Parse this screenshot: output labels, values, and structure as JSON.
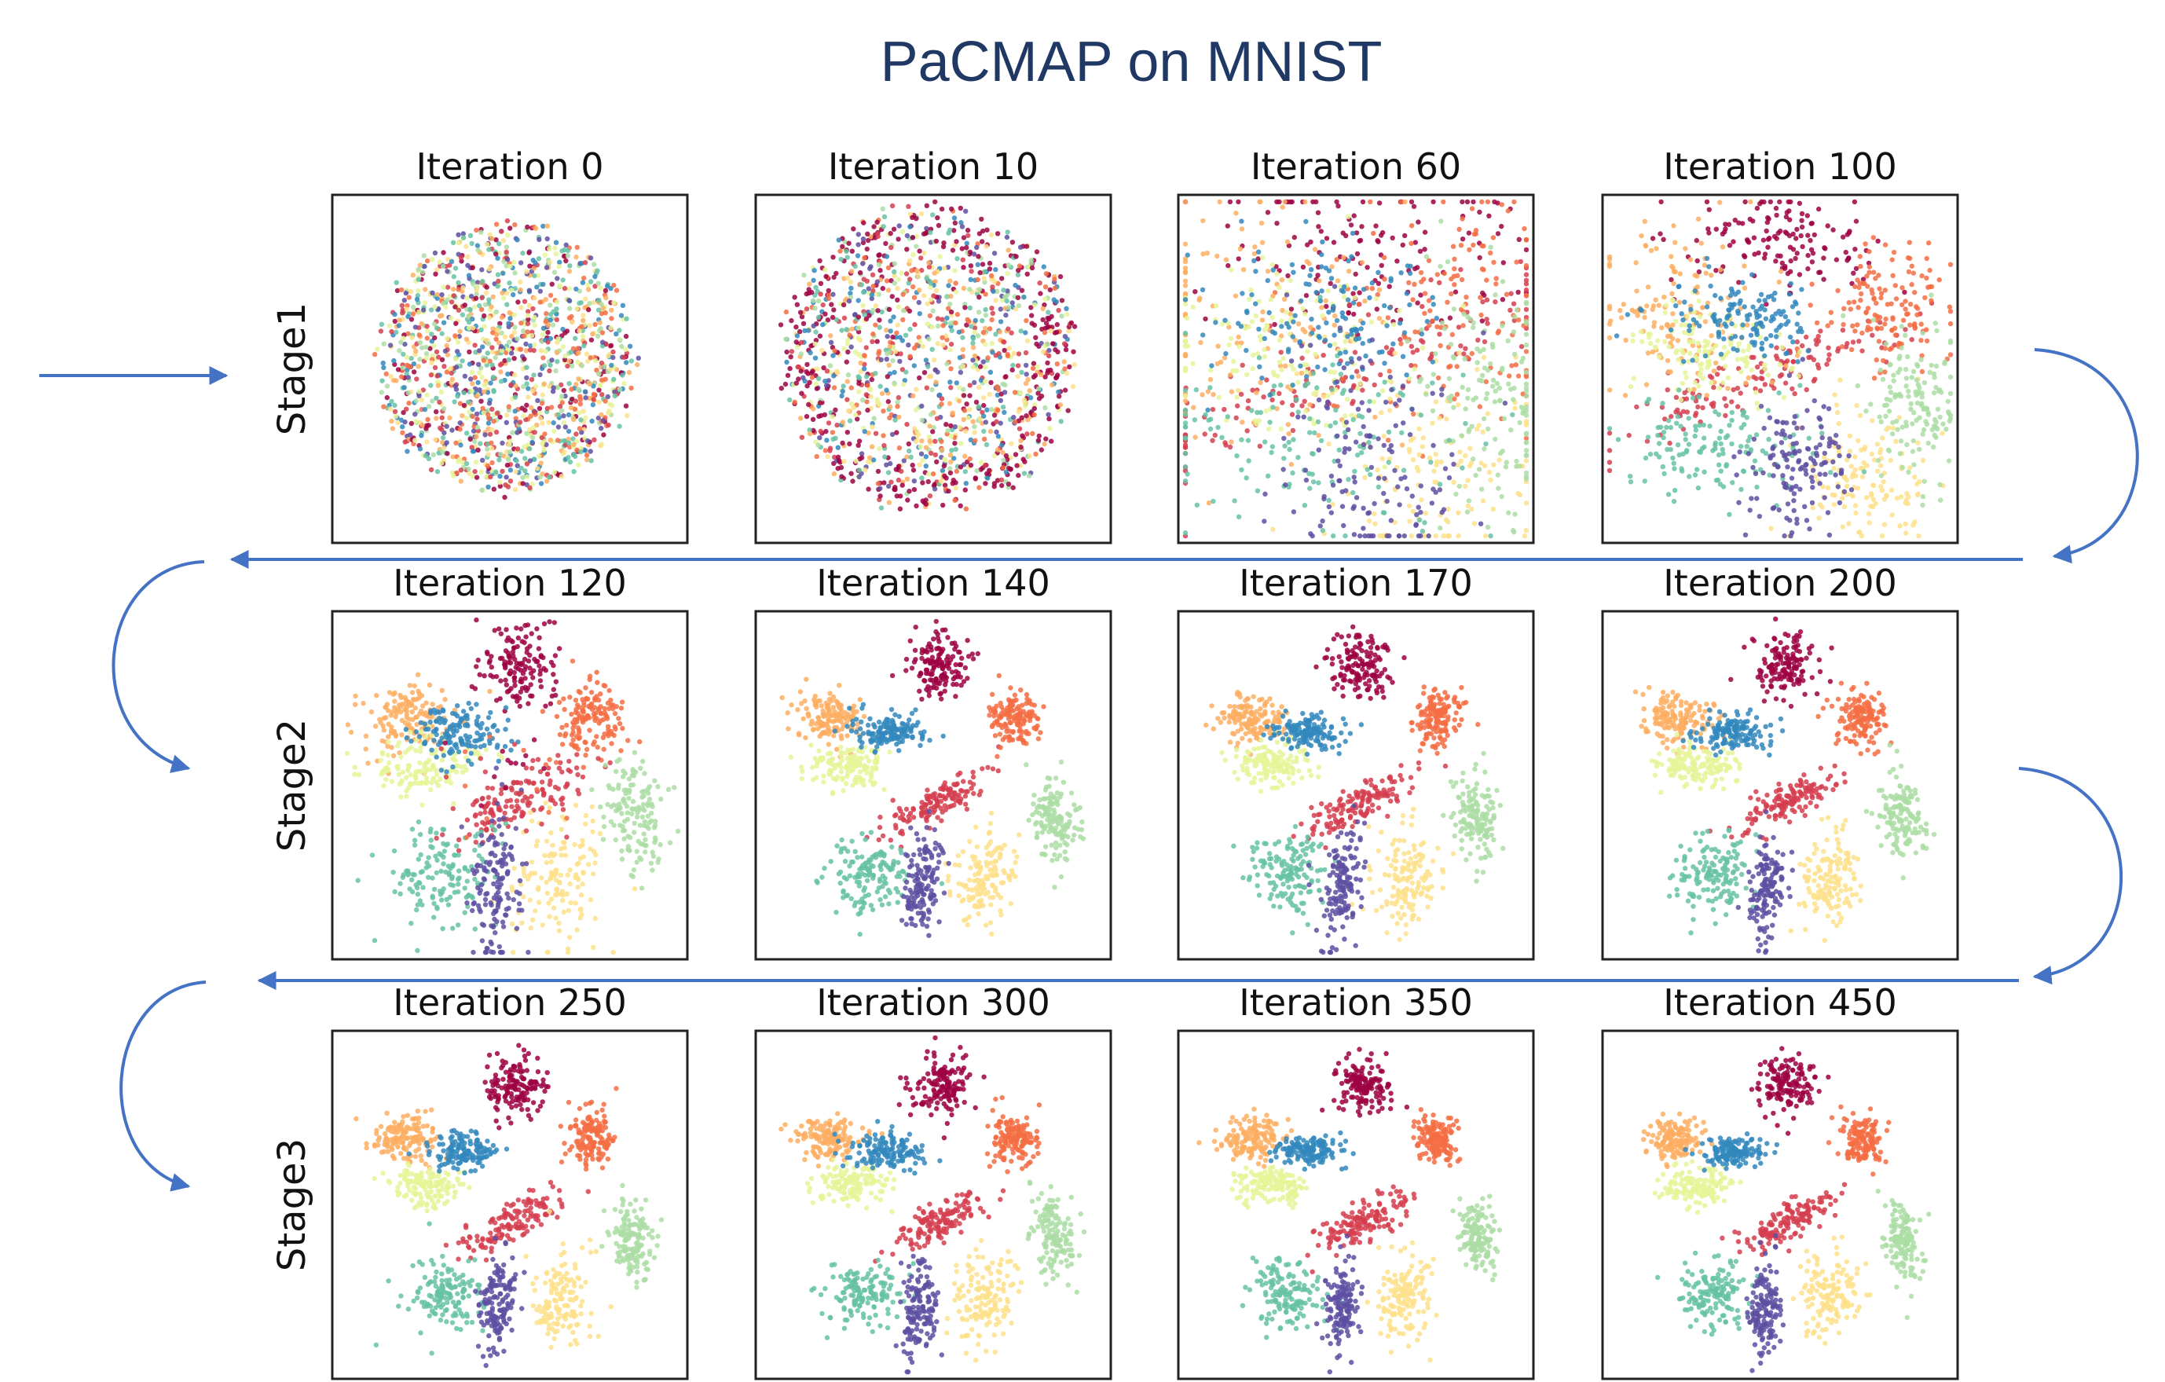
{
  "title": "PaCMAP on MNIST",
  "colors": [
    "#9e0142",
    "#d53e4f",
    "#f46d43",
    "#fdae61",
    "#fee08b",
    "#e6f598",
    "#abdda4",
    "#66c2a5",
    "#3288bd",
    "#5e4fa2"
  ],
  "arrow_color": "#4472c4",
  "chart_data": {
    "type": "scatter",
    "rows": [
      {
        "label": "Stage1",
        "panels": [
          {
            "title": "Iteration 0",
            "iteration": 0
          },
          {
            "title": "Iteration 10",
            "iteration": 10
          },
          {
            "title": "Iteration 60",
            "iteration": 60
          },
          {
            "title": "Iteration 100",
            "iteration": 100
          }
        ]
      },
      {
        "label": "Stage2",
        "panels": [
          {
            "title": "Iteration 120",
            "iteration": 120
          },
          {
            "title": "Iteration 140",
            "iteration": 140
          },
          {
            "title": "Iteration 170",
            "iteration": 170
          },
          {
            "title": "Iteration 200",
            "iteration": 200
          }
        ]
      },
      {
        "label": "Stage3",
        "panels": [
          {
            "title": "Iteration 250",
            "iteration": 250
          },
          {
            "title": "Iteration 300",
            "iteration": 300
          },
          {
            "title": "Iteration 350",
            "iteration": 350
          },
          {
            "title": "Iteration 450",
            "iteration": 450
          }
        ]
      }
    ],
    "grid": false,
    "legend": "none"
  }
}
